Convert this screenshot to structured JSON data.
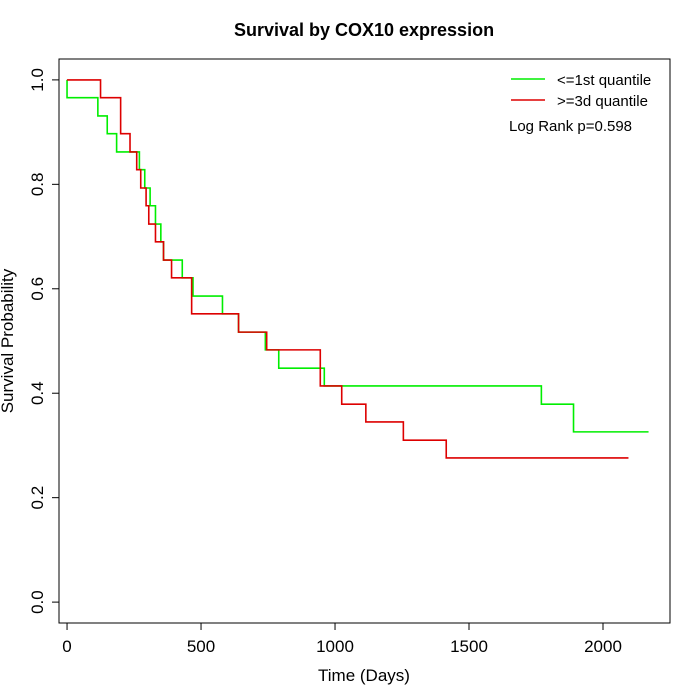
{
  "chart_data": {
    "type": "line",
    "subtype": "kaplan-meier step",
    "title": "Survival by COX10 expression",
    "xlabel": "Time (Days)",
    "ylabel": "Survival Probability",
    "xlim": [
      -30,
      2250
    ],
    "ylim": [
      -0.04,
      1.04
    ],
    "xticks": [
      0,
      500,
      1000,
      1500,
      2000
    ],
    "yticks": [
      0.0,
      0.2,
      0.4,
      0.6,
      0.8,
      1.0
    ],
    "xtick_labels": [
      "0",
      "500",
      "1000",
      "1500",
      "2000"
    ],
    "ytick_labels": [
      "0.0",
      "0.2",
      "0.4",
      "0.6",
      "0.8",
      "1.0"
    ],
    "grid": false,
    "legend_position": "top-right",
    "annotation": "Log Rank p=0.598",
    "series": [
      {
        "name": "<=1st quantile",
        "color": "#00ee00",
        "x": [
          0,
          0,
          115,
          150,
          185,
          270,
          290,
          310,
          330,
          350,
          360,
          430,
          470,
          580,
          640,
          740,
          790,
          950,
          960,
          1770,
          1890,
          2170
        ],
        "y": [
          1.0,
          0.966,
          0.931,
          0.897,
          0.862,
          0.828,
          0.793,
          0.759,
          0.724,
          0.69,
          0.655,
          0.621,
          0.586,
          0.552,
          0.517,
          0.483,
          0.448,
          0.448,
          0.414,
          0.379,
          0.326,
          0.326
        ]
      },
      {
        "name": ">=3d quantile",
        "color": "#dd0000",
        "x": [
          0,
          125,
          200,
          235,
          260,
          275,
          295,
          305,
          330,
          360,
          390,
          465,
          640,
          745,
          945,
          1025,
          1115,
          1255,
          1415,
          2095
        ],
        "y": [
          1.0,
          0.966,
          0.897,
          0.862,
          0.828,
          0.793,
          0.759,
          0.724,
          0.69,
          0.655,
          0.621,
          0.552,
          0.517,
          0.483,
          0.414,
          0.379,
          0.345,
          0.31,
          0.276,
          0.276
        ]
      }
    ]
  }
}
